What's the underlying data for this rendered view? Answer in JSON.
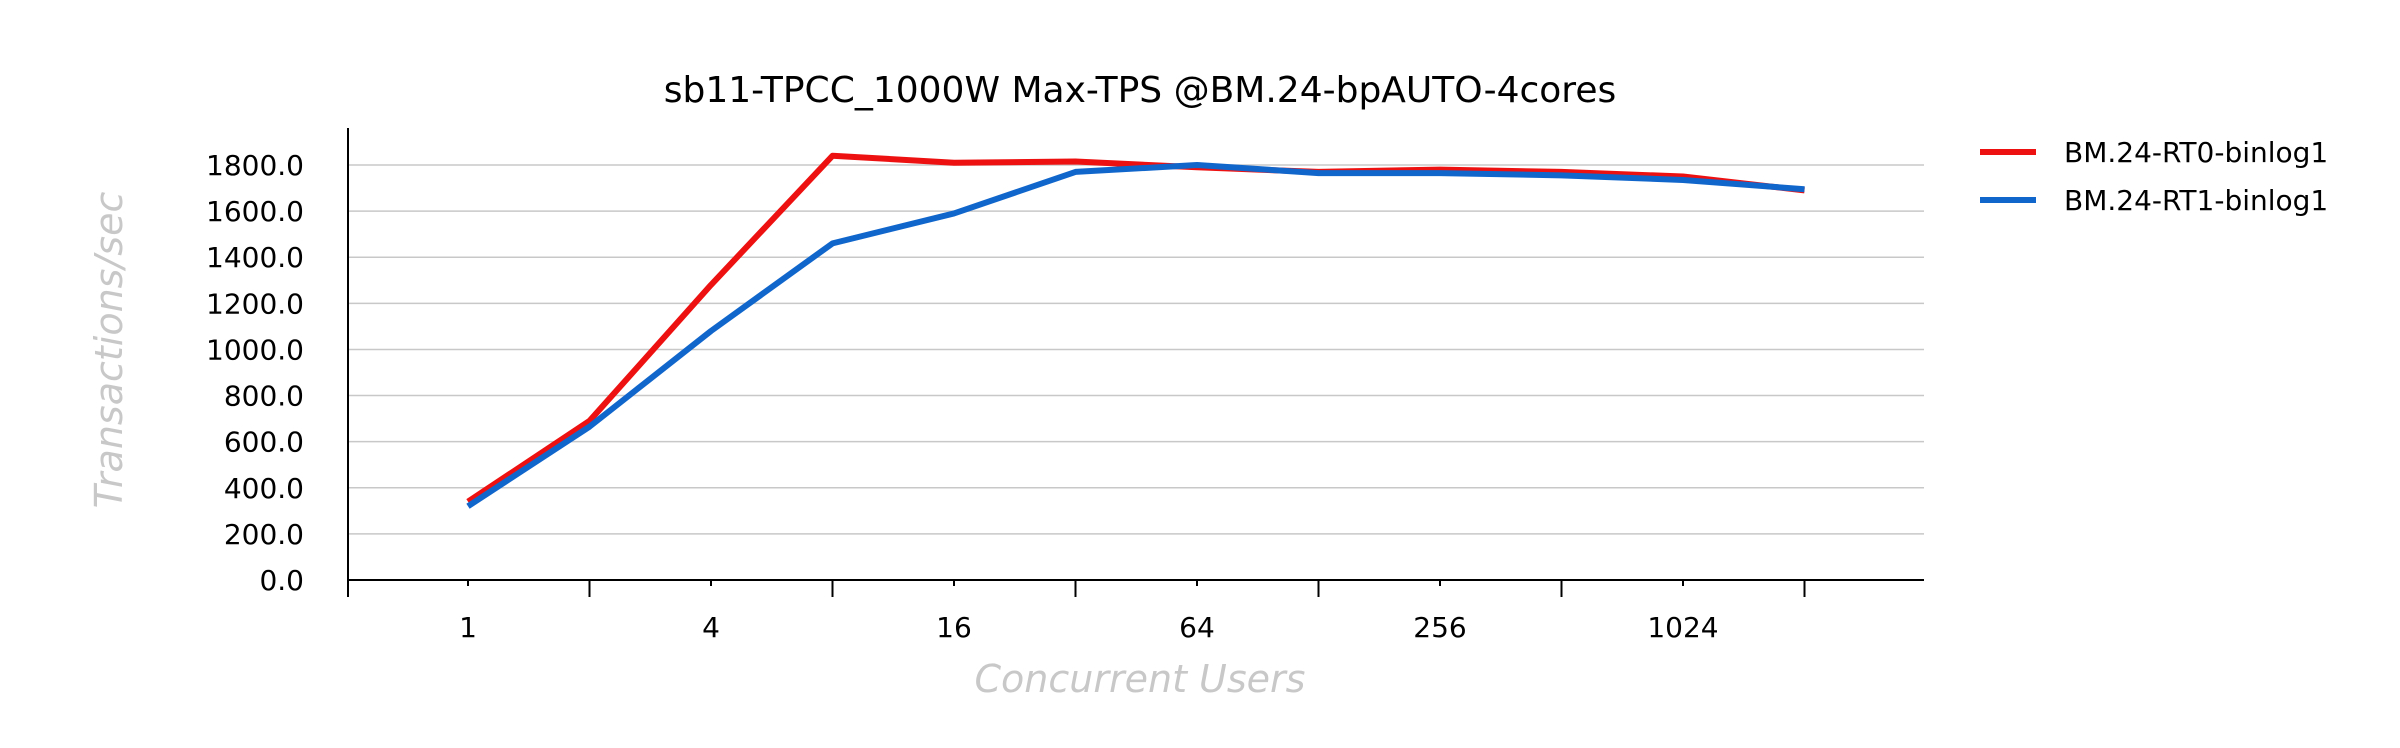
{
  "chart_data": {
    "type": "line",
    "title": "sb11-TPCC_1000W Max-TPS @BM.24-bpAUTO-4cores",
    "xlabel": "Concurrent Users",
    "ylabel": "Transactions/sec",
    "x_scale": "log2",
    "x": [
      1,
      2,
      4,
      8,
      16,
      32,
      64,
      128,
      256,
      512,
      1024,
      2048
    ],
    "x_tick_labels": [
      "1",
      "4",
      "16",
      "64",
      "256",
      "1024"
    ],
    "y_tick_labels": [
      "0.0",
      "200.0",
      "400.0",
      "600.0",
      "800.0",
      "1000.0",
      "1200.0",
      "1400.0",
      "1600.0",
      "1800.0"
    ],
    "ylim": [
      0,
      1800
    ],
    "grid": true,
    "legend_position": "top-right",
    "series": [
      {
        "name": "BM.24-RT0-binlog1",
        "color": "#ee1111",
        "values": [
          340,
          690,
          1280,
          1840,
          1810,
          1815,
          1790,
          1770,
          1780,
          1770,
          1750,
          1690
        ]
      },
      {
        "name": "BM.24-RT1-binlog1",
        "color": "#1166cc",
        "values": [
          320,
          665,
          1080,
          1460,
          1590,
          1770,
          1800,
          1765,
          1765,
          1755,
          1735,
          1695
        ]
      }
    ]
  }
}
